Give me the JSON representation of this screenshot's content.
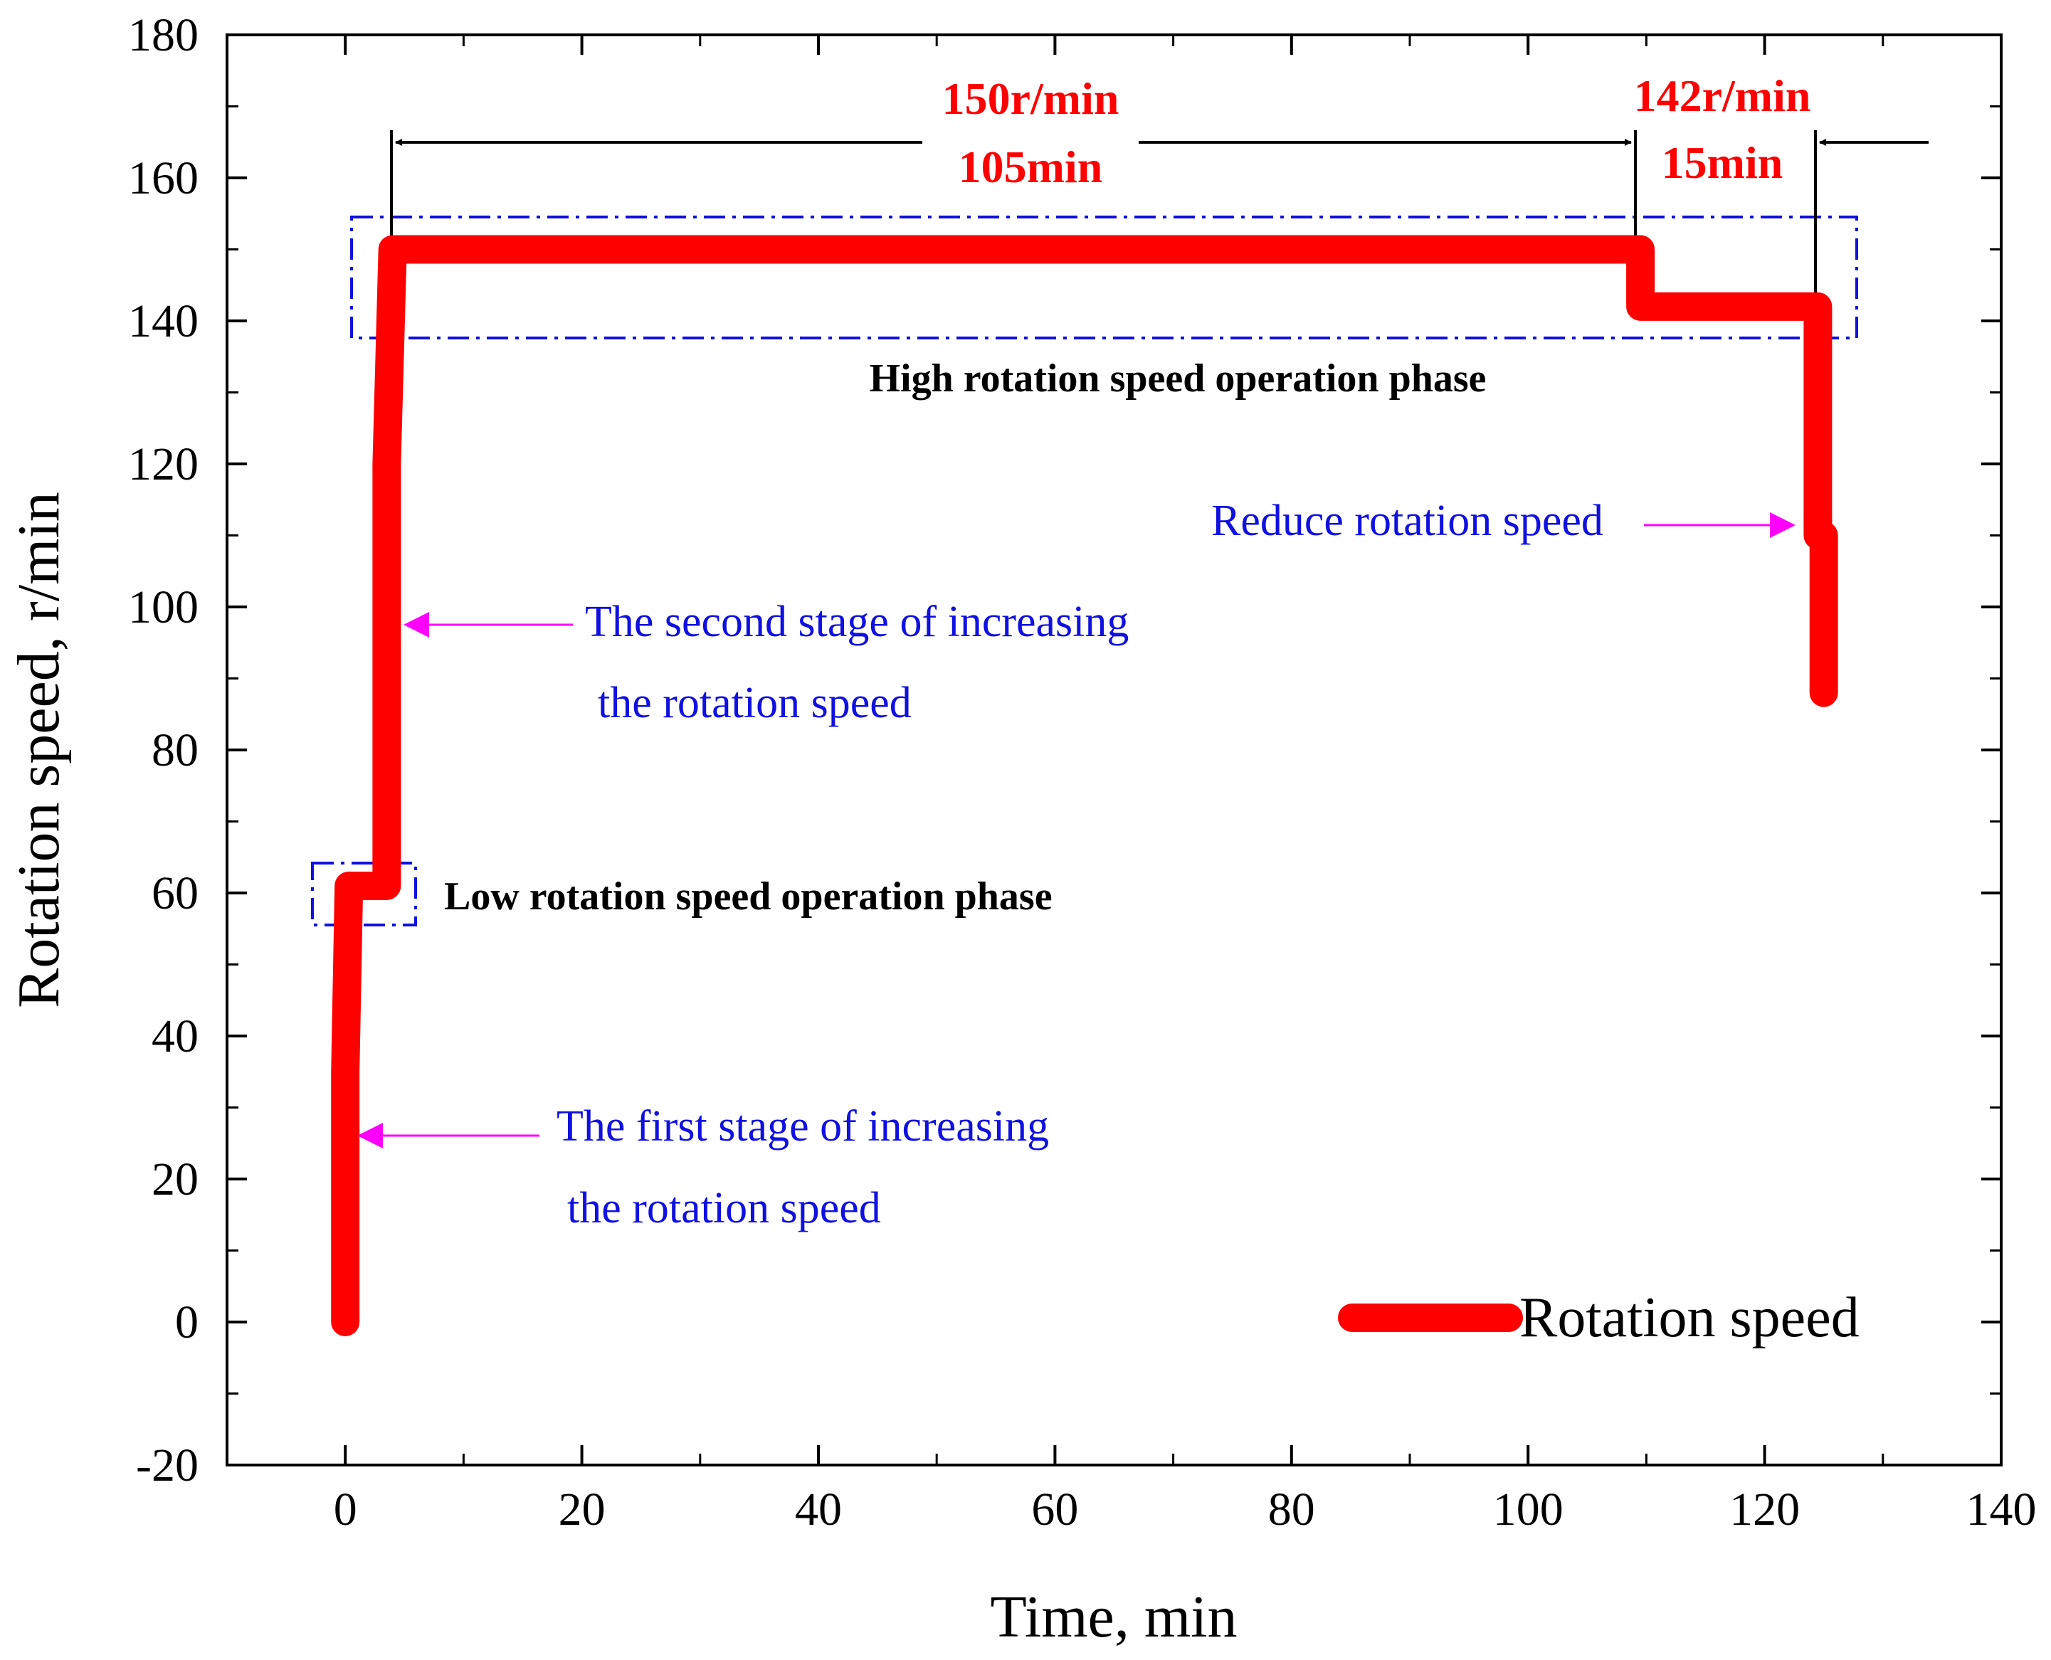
{
  "chart_data": {
    "type": "line",
    "title": "",
    "xlabel": "Time, min",
    "ylabel": "Rotation speed, r/min",
    "xlim": [
      -10,
      140
    ],
    "ylim": [
      -20,
      180
    ],
    "x_ticks": [
      0,
      20,
      40,
      60,
      80,
      100,
      120,
      140
    ],
    "y_ticks": [
      -20,
      0,
      20,
      40,
      60,
      80,
      100,
      120,
      140,
      160,
      180
    ],
    "grid": false,
    "legend_position": "bottom-right",
    "series": [
      {
        "name": "Rotation speed",
        "color": "#ff0000",
        "x": [
          0,
          0,
          0.3,
          3.5,
          3.5,
          4.0,
          109.5,
          109.5,
          110.5,
          124.5,
          124.5,
          125,
          125
        ],
        "y": [
          0,
          35,
          61,
          61,
          120,
          150,
          150,
          142,
          142,
          142,
          110,
          110,
          88
        ]
      }
    ],
    "annotations": {
      "phase_1_speed": "150r/min",
      "phase_1_duration": "105min",
      "phase_2_speed": "142r/min",
      "phase_2_duration": "15min",
      "high_phase": "High rotation speed operation phase",
      "low_phase": "Low rotation speed operation phase",
      "first_stage_line1": "The first stage of increasing",
      "first_stage_line2": "the rotation speed",
      "second_stage_line1": "The second stage of increasing",
      "second_stage_line2": "the rotation speed",
      "reduce": "Reduce rotation speed"
    }
  },
  "colors": {
    "series": "#ff0000",
    "annotation_blue": "#1010e0",
    "arrow_magenta": "#ff00ff",
    "box_blue": "#1010e0"
  }
}
